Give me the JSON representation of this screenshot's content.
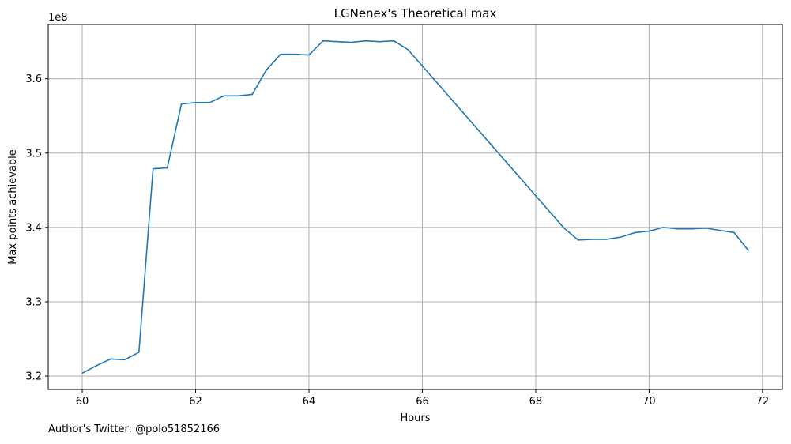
{
  "chart_data": {
    "type": "line",
    "title": "LGNenex's Theoretical max",
    "xlabel": "Hours",
    "ylabel": "Max points achievable",
    "y_offset_label": "1e8",
    "xlim": [
      59.4,
      72.35
    ],
    "ylim": [
      3.182,
      3.673
    ],
    "x_ticks": [
      60,
      62,
      64,
      66,
      68,
      70,
      72
    ],
    "x_tick_labels": [
      "60",
      "62",
      "64",
      "66",
      "68",
      "70",
      "72"
    ],
    "y_ticks": [
      3.2,
      3.3,
      3.4,
      3.5,
      3.6
    ],
    "y_tick_labels": [
      "3.2",
      "3.3",
      "3.4",
      "3.5",
      "3.6"
    ],
    "grid": true,
    "line_color": "#1f77b4",
    "series": [
      {
        "x": [
          60.0,
          60.25,
          60.5,
          60.75,
          61.0,
          61.25,
          61.5,
          61.75,
          62.0,
          62.25,
          62.5,
          62.75,
          63.0,
          63.25,
          63.5,
          63.75,
          64.0,
          64.25,
          64.5,
          64.75,
          65.0,
          65.25,
          65.5,
          65.75,
          68.5,
          68.75,
          69.0,
          69.25,
          69.5,
          69.75,
          70.0,
          70.25,
          70.5,
          70.75,
          71.0,
          71.25,
          71.5,
          71.75
        ],
        "values": [
          3.204,
          3.214,
          3.223,
          3.222,
          3.232,
          3.479,
          3.48,
          3.566,
          3.568,
          3.568,
          3.577,
          3.577,
          3.579,
          3.612,
          3.633,
          3.633,
          3.632,
          3.651,
          3.65,
          3.649,
          3.651,
          3.65,
          3.651,
          3.639,
          3.399,
          3.383,
          3.384,
          3.384,
          3.387,
          3.393,
          3.395,
          3.4,
          3.398,
          3.398,
          3.399,
          3.396,
          3.393,
          3.369
        ]
      }
    ]
  },
  "footer": {
    "author_text": "Author's Twitter: @polo51852166"
  }
}
